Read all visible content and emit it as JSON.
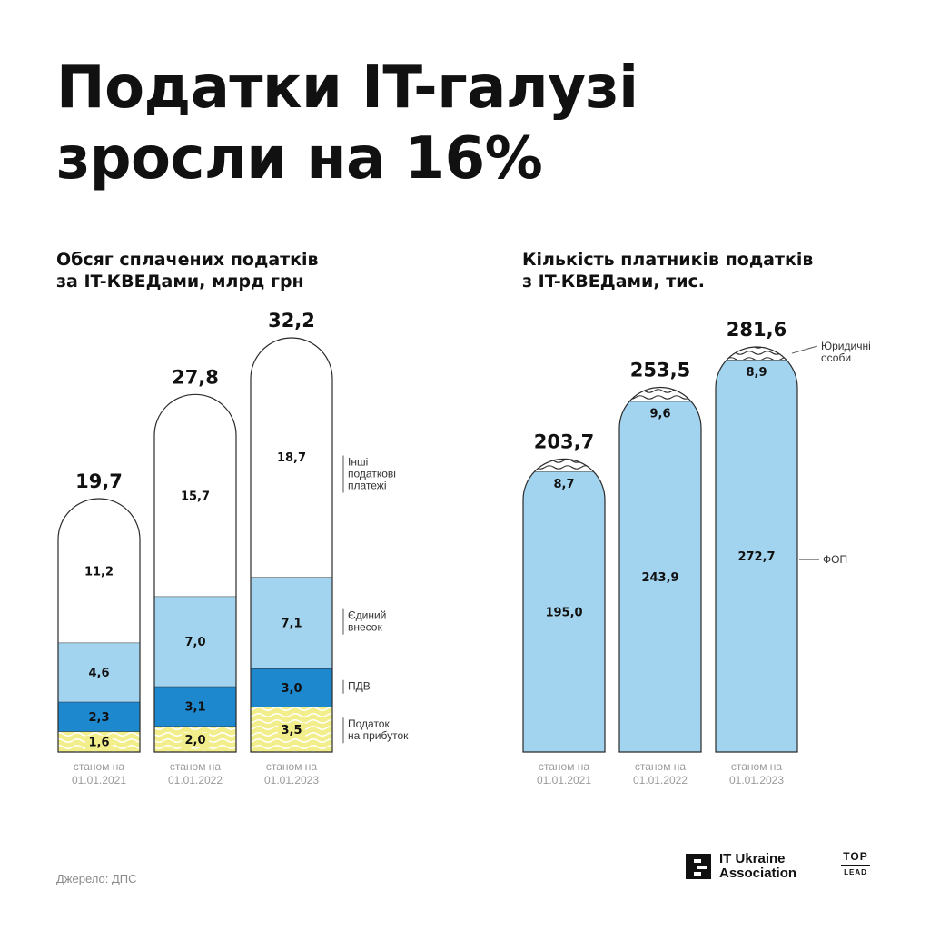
{
  "title": {
    "line1": "Податки IT-галузі",
    "line2": "зросли на 16%"
  },
  "chart_data": [
    {
      "type": "bar",
      "title": [
        "Обсяг сплачених податків",
        "за IT-КВЕДами, млрд грн"
      ],
      "categories": [
        [
          "станом на",
          "01.01.2021"
        ],
        [
          "станом на",
          "01.01.2022"
        ],
        [
          "станом на",
          "01.01.2023"
        ]
      ],
      "totals": [
        "19,7",
        "27,8",
        "32,2"
      ],
      "total_values": [
        19.7,
        27.8,
        32.2
      ],
      "series": [
        {
          "name": "Податок на прибуток",
          "legend": [
            "Податок",
            "на прибуток"
          ],
          "values": [
            1.6,
            2.0,
            3.5
          ],
          "labels": [
            "1,6",
            "2,0",
            "3,5"
          ],
          "color": "#f2ee8c",
          "pattern": "wavy"
        },
        {
          "name": "ПДВ",
          "legend": [
            "ПДВ"
          ],
          "values": [
            2.3,
            3.1,
            3.0
          ],
          "labels": [
            "2,3",
            "3,1",
            "3,0"
          ],
          "color": "#1e88cf"
        },
        {
          "name": "Єдиний внесок",
          "legend": [
            "Єдиний",
            "внесок"
          ],
          "values": [
            4.6,
            7.0,
            7.1
          ],
          "labels": [
            "4,6",
            "7,0",
            "7,1"
          ],
          "color": "#a3d4ef"
        },
        {
          "name": "Інші податкові платежі",
          "legend": [
            "Інші",
            "податкові",
            "платежі"
          ],
          "values": [
            11.2,
            15.7,
            18.7
          ],
          "labels": [
            "11,2",
            "15,7",
            "18,7"
          ],
          "color": "#ffffff"
        }
      ]
    },
    {
      "type": "bar",
      "title": [
        "Кількість платників податків",
        "з IT-КВЕДами, тис."
      ],
      "categories": [
        [
          "станом на",
          "01.01.2021"
        ],
        [
          "станом на",
          "01.01.2022"
        ],
        [
          "станом на",
          "01.01.2023"
        ]
      ],
      "totals": [
        "203,7",
        "253,5",
        "281,6"
      ],
      "total_values": [
        203.7,
        253.5,
        281.6
      ],
      "series": [
        {
          "name": "ФОП",
          "legend": [
            "ФОП"
          ],
          "values": [
            195.0,
            243.9,
            272.7
          ],
          "labels": [
            "195,0",
            "243,9",
            "272,7"
          ],
          "color": "#a3d4ef"
        },
        {
          "name": "Юридичні особи",
          "legend": [
            "Юридичні",
            "особи"
          ],
          "values": [
            8.7,
            9.6,
            8.9
          ],
          "labels": [
            "8,7",
            "9,6",
            "8,9"
          ],
          "color": "#ffffff",
          "pattern": "wavy"
        }
      ]
    }
  ],
  "footer": {
    "source": "Джерело: ДПС",
    "logo_line1": "IT Ukraine",
    "logo_line2": "Association",
    "partner_line1": "TOP",
    "partner_line2": "LEAD"
  }
}
